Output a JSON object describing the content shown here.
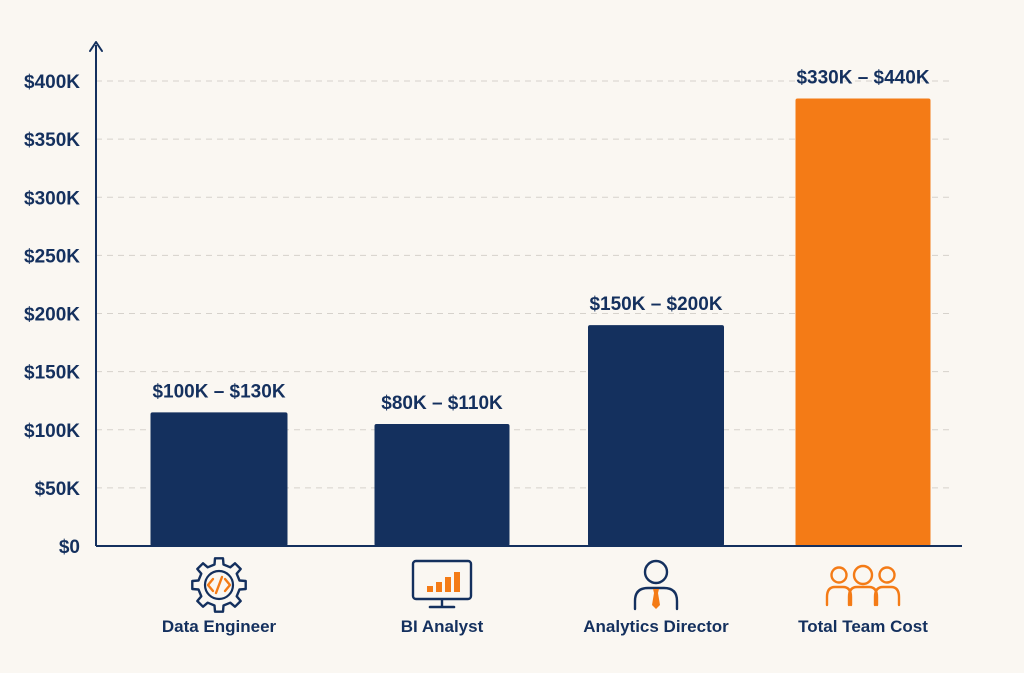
{
  "colors": {
    "background": "#faf7f2",
    "navy": "#14305e",
    "accent": "#f47b16",
    "grid": "#d6d2cc"
  },
  "chart_data": {
    "type": "bar",
    "title": "",
    "xlabel": "",
    "ylabel": "",
    "ylim": [
      0,
      400000
    ],
    "yticks": [
      0,
      50000,
      100000,
      150000,
      200000,
      250000,
      300000,
      350000,
      400000
    ],
    "ytick_labels": [
      "$0",
      "$50K",
      "$100K",
      "$150K",
      "$200K",
      "$250K",
      "$300K",
      "$350K",
      "$400K"
    ],
    "grid": "horizontal dashed",
    "categories": [
      "Data Engineer",
      "BI Analyst",
      "Analytics Director",
      "Total Team Cost"
    ],
    "values": [
      115000,
      105000,
      190000,
      385000
    ],
    "ranges": [
      [
        100000,
        130000
      ],
      [
        80000,
        110000
      ],
      [
        150000,
        200000
      ],
      [
        330000,
        440000
      ]
    ],
    "data_labels": [
      "$100K – $130K",
      "$80K – $110K",
      "$150K – $200K",
      "$330K – $440K"
    ],
    "bar_colors": [
      "#14305e",
      "#14305e",
      "#14305e",
      "#f47b16"
    ],
    "icons": [
      "gear-code-icon",
      "monitor-bar-chart-icon",
      "person-tie-icon",
      "team-group-icon"
    ]
  }
}
